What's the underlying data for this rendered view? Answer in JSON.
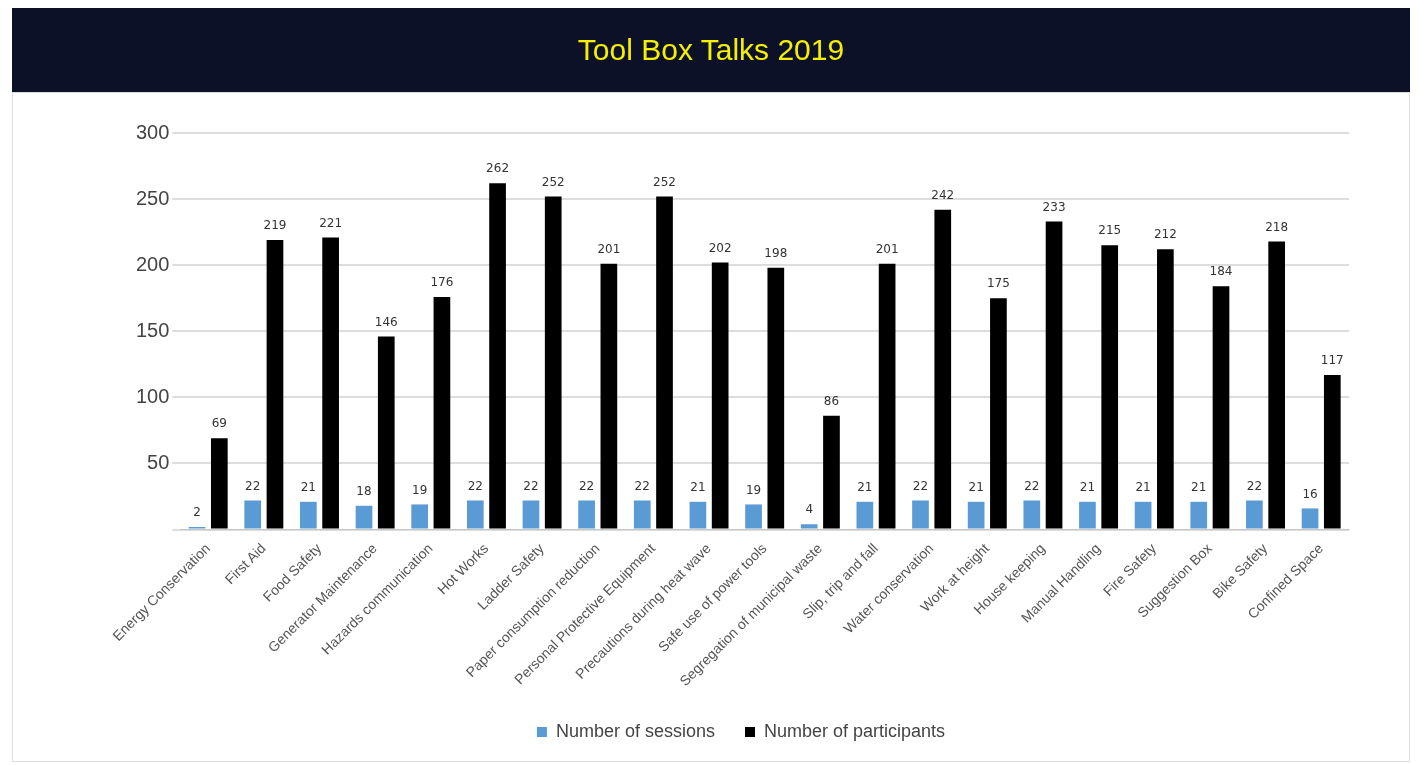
{
  "chart_data": {
    "type": "bar",
    "title": "Tool Box Talks 2019",
    "categories": [
      "Energy Conservation",
      "First Aid",
      "Food Safety",
      "Generator Maintenance",
      "Hazards communication",
      "Hot Works",
      "Ladder Safety",
      "Paper consumption reduction",
      "Personal Protective Equipment",
      "Precautions during heat wave",
      "Safe use of power tools",
      "Segregation of municipal waste",
      "Slip, trip and fall",
      "Water conservation",
      "Work at height",
      "House keeping",
      "Manual Handling",
      "Fire Safety",
      "Suggestion Box",
      "Bike Safety",
      "Confined Space"
    ],
    "series": [
      {
        "name": "Number of sessions",
        "color": "#5b9bd5",
        "values": [
          2,
          22,
          21,
          18,
          19,
          22,
          22,
          22,
          22,
          21,
          19,
          4,
          21,
          22,
          21,
          22,
          21,
          21,
          21,
          22,
          16
        ]
      },
      {
        "name": "Number of participants",
        "color": "#000000",
        "values": [
          69,
          219,
          221,
          146,
          176,
          262,
          252,
          201,
          252,
          202,
          198,
          86,
          201,
          242,
          175,
          233,
          215,
          212,
          184,
          218,
          117
        ]
      }
    ],
    "ylim": [
      0,
      300
    ],
    "yticks": [
      {
        "value": 0,
        "label": null
      },
      50,
      100,
      150,
      200,
      250,
      300
    ],
    "grid": "y",
    "legend": "bottom",
    "data_labels": true
  }
}
